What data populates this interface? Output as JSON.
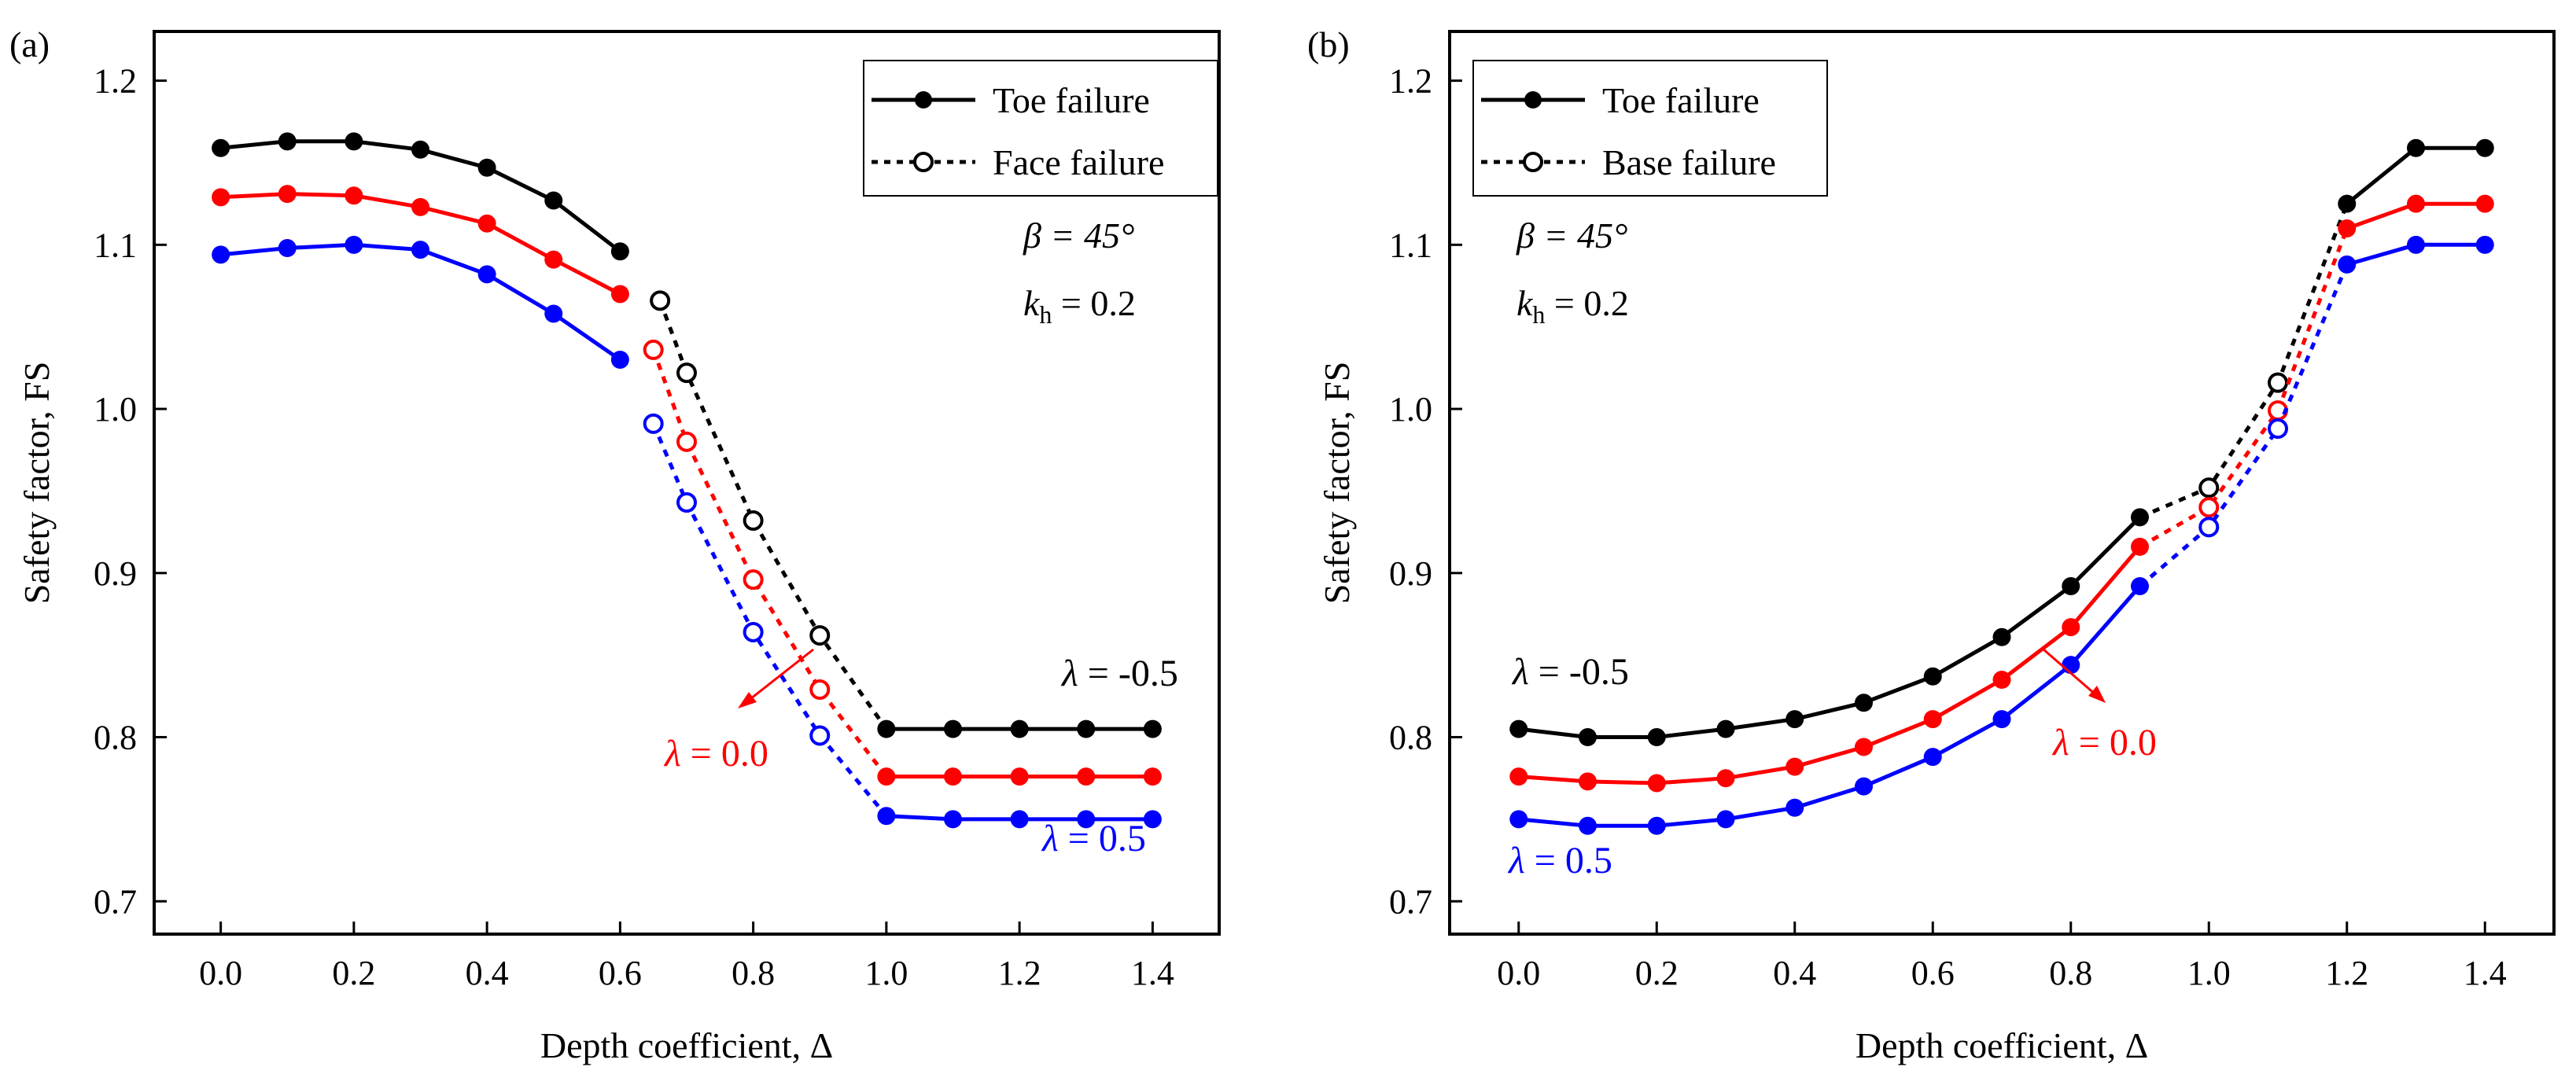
{
  "chart_data": [
    {
      "panel_label": "(a)",
      "type": "line",
      "xlabel": "Depth coefficient, Δ",
      "ylabel": "Safety factor, FS",
      "xlim": [
        -0.1,
        1.5
      ],
      "ylim": [
        0.68,
        1.23
      ],
      "x_ticks": [
        "0.0",
        "0.2",
        "0.4",
        "0.6",
        "0.8",
        "1.0",
        "1.2",
        "1.4"
      ],
      "y_ticks": [
        "0.7",
        "0.8",
        "0.9",
        "1.0",
        "1.1",
        "1.2"
      ],
      "legend": [
        {
          "label": "Toe failure",
          "style": "solid-filled"
        },
        {
          "label": "Face failure",
          "style": "dotted-open"
        }
      ],
      "params": {
        "beta": "β = 45°",
        "kh_sym": "k",
        "kh_sub": "h",
        "kh_val": " = 0.2"
      },
      "series": [
        {
          "name": "λ = -0.5",
          "color": "#000000",
          "label_sym": "λ",
          "label_val": " = -0.5",
          "solid1": [
            [
              0.0,
              1.159
            ],
            [
              0.1,
              1.163
            ],
            [
              0.2,
              1.163
            ],
            [
              0.3,
              1.158
            ],
            [
              0.4,
              1.147
            ],
            [
              0.5,
              1.127
            ],
            [
              0.6,
              1.096
            ]
          ],
          "dotted": [
            [
              0.66,
              1.066
            ],
            [
              0.7,
              1.022
            ],
            [
              0.8,
              0.932
            ],
            [
              0.9,
              0.862
            ],
            [
              1.0,
              0.805
            ]
          ],
          "solid2": [
            [
              1.0,
              0.805
            ],
            [
              1.1,
              0.805
            ],
            [
              1.2,
              0.805
            ],
            [
              1.3,
              0.805
            ],
            [
              1.4,
              0.805
            ]
          ]
        },
        {
          "name": "λ = 0.0",
          "color": "#ff0000",
          "label_sym": "λ",
          "label_val": " = 0.0",
          "solid1": [
            [
              0.0,
              1.129
            ],
            [
              0.1,
              1.131
            ],
            [
              0.2,
              1.13
            ],
            [
              0.3,
              1.123
            ],
            [
              0.4,
              1.113
            ],
            [
              0.5,
              1.091
            ],
            [
              0.6,
              1.07
            ]
          ],
          "dotted": [
            [
              0.65,
              1.036
            ],
            [
              0.7,
              0.98
            ],
            [
              0.8,
              0.896
            ],
            [
              0.9,
              0.829
            ],
            [
              1.0,
              0.776
            ]
          ],
          "solid2": [
            [
              1.0,
              0.776
            ],
            [
              1.1,
              0.776
            ],
            [
              1.2,
              0.776
            ],
            [
              1.3,
              0.776
            ],
            [
              1.4,
              0.776
            ]
          ]
        },
        {
          "name": "λ = 0.5",
          "color": "#0000ff",
          "label_sym": "λ",
          "label_val": " = 0.5",
          "solid1": [
            [
              0.0,
              1.094
            ],
            [
              0.1,
              1.098
            ],
            [
              0.2,
              1.1
            ],
            [
              0.3,
              1.097
            ],
            [
              0.4,
              1.082
            ],
            [
              0.5,
              1.058
            ],
            [
              0.6,
              1.03
            ]
          ],
          "dotted": [
            [
              0.65,
              0.991
            ],
            [
              0.7,
              0.943
            ],
            [
              0.8,
              0.864
            ],
            [
              0.9,
              0.801
            ],
            [
              1.0,
              0.752
            ]
          ],
          "solid2": [
            [
              1.0,
              0.752
            ],
            [
              1.1,
              0.75
            ],
            [
              1.2,
              0.75
            ],
            [
              1.3,
              0.75
            ],
            [
              1.4,
              0.75
            ]
          ]
        }
      ]
    },
    {
      "panel_label": "(b)",
      "type": "line",
      "xlabel": "Depth coefficient, Δ",
      "ylabel": "Safety factor, FS",
      "xlim": [
        -0.1,
        1.5
      ],
      "ylim": [
        0.68,
        1.23
      ],
      "x_ticks": [
        "0.0",
        "0.2",
        "0.4",
        "0.6",
        "0.8",
        "1.0",
        "1.2",
        "1.4"
      ],
      "y_ticks": [
        "0.7",
        "0.8",
        "0.9",
        "1.0",
        "1.1",
        "1.2"
      ],
      "legend": [
        {
          "label": "Toe failure",
          "style": "solid-filled"
        },
        {
          "label": "Base failure",
          "style": "dotted-open"
        }
      ],
      "params": {
        "beta": "β = 45°",
        "kh_sym": "k",
        "kh_sub": "h",
        "kh_val": " = 0.2"
      },
      "series": [
        {
          "name": "λ = -0.5",
          "color": "#000000",
          "label_sym": "λ",
          "label_val": " = -0.5",
          "solid1": [
            [
              0.0,
              0.805
            ],
            [
              0.1,
              0.8
            ],
            [
              0.2,
              0.8
            ],
            [
              0.3,
              0.805
            ],
            [
              0.4,
              0.811
            ],
            [
              0.5,
              0.821
            ],
            [
              0.6,
              0.837
            ],
            [
              0.7,
              0.861
            ],
            [
              0.8,
              0.892
            ],
            [
              0.9,
              0.934
            ]
          ],
          "dotted": [
            [
              0.9,
              0.934
            ],
            [
              1.0,
              0.952
            ],
            [
              1.1,
              1.016
            ],
            [
              1.2,
              1.125
            ]
          ],
          "solid2": [
            [
              1.2,
              1.125
            ],
            [
              1.3,
              1.159
            ],
            [
              1.4,
              1.159
            ]
          ]
        },
        {
          "name": "λ = 0.0",
          "color": "#ff0000",
          "label_sym": "λ",
          "label_val": " = 0.0",
          "solid1": [
            [
              0.0,
              0.776
            ],
            [
              0.1,
              0.773
            ],
            [
              0.2,
              0.772
            ],
            [
              0.3,
              0.775
            ],
            [
              0.4,
              0.782
            ],
            [
              0.5,
              0.794
            ],
            [
              0.6,
              0.811
            ],
            [
              0.7,
              0.835
            ],
            [
              0.8,
              0.867
            ],
            [
              0.9,
              0.916
            ]
          ],
          "dotted": [
            [
              0.9,
              0.916
            ],
            [
              1.0,
              0.94
            ],
            [
              1.1,
              0.999
            ],
            [
              1.2,
              1.11
            ]
          ],
          "solid2": [
            [
              1.2,
              1.11
            ],
            [
              1.3,
              1.125
            ],
            [
              1.4,
              1.125
            ]
          ]
        },
        {
          "name": "λ = 0.5",
          "color": "#0000ff",
          "label_sym": "λ",
          "label_val": " = 0.5",
          "solid1": [
            [
              0.0,
              0.75
            ],
            [
              0.1,
              0.746
            ],
            [
              0.2,
              0.746
            ],
            [
              0.3,
              0.75
            ],
            [
              0.4,
              0.757
            ],
            [
              0.5,
              0.77
            ],
            [
              0.6,
              0.788
            ],
            [
              0.7,
              0.811
            ],
            [
              0.8,
              0.844
            ],
            [
              0.9,
              0.892
            ]
          ],
          "dotted": [
            [
              0.9,
              0.892
            ],
            [
              1.0,
              0.928
            ],
            [
              1.1,
              0.988
            ],
            [
              1.2,
              1.088
            ]
          ],
          "solid2": [
            [
              1.2,
              1.088
            ],
            [
              1.3,
              1.1
            ],
            [
              1.4,
              1.1
            ]
          ]
        }
      ]
    }
  ]
}
